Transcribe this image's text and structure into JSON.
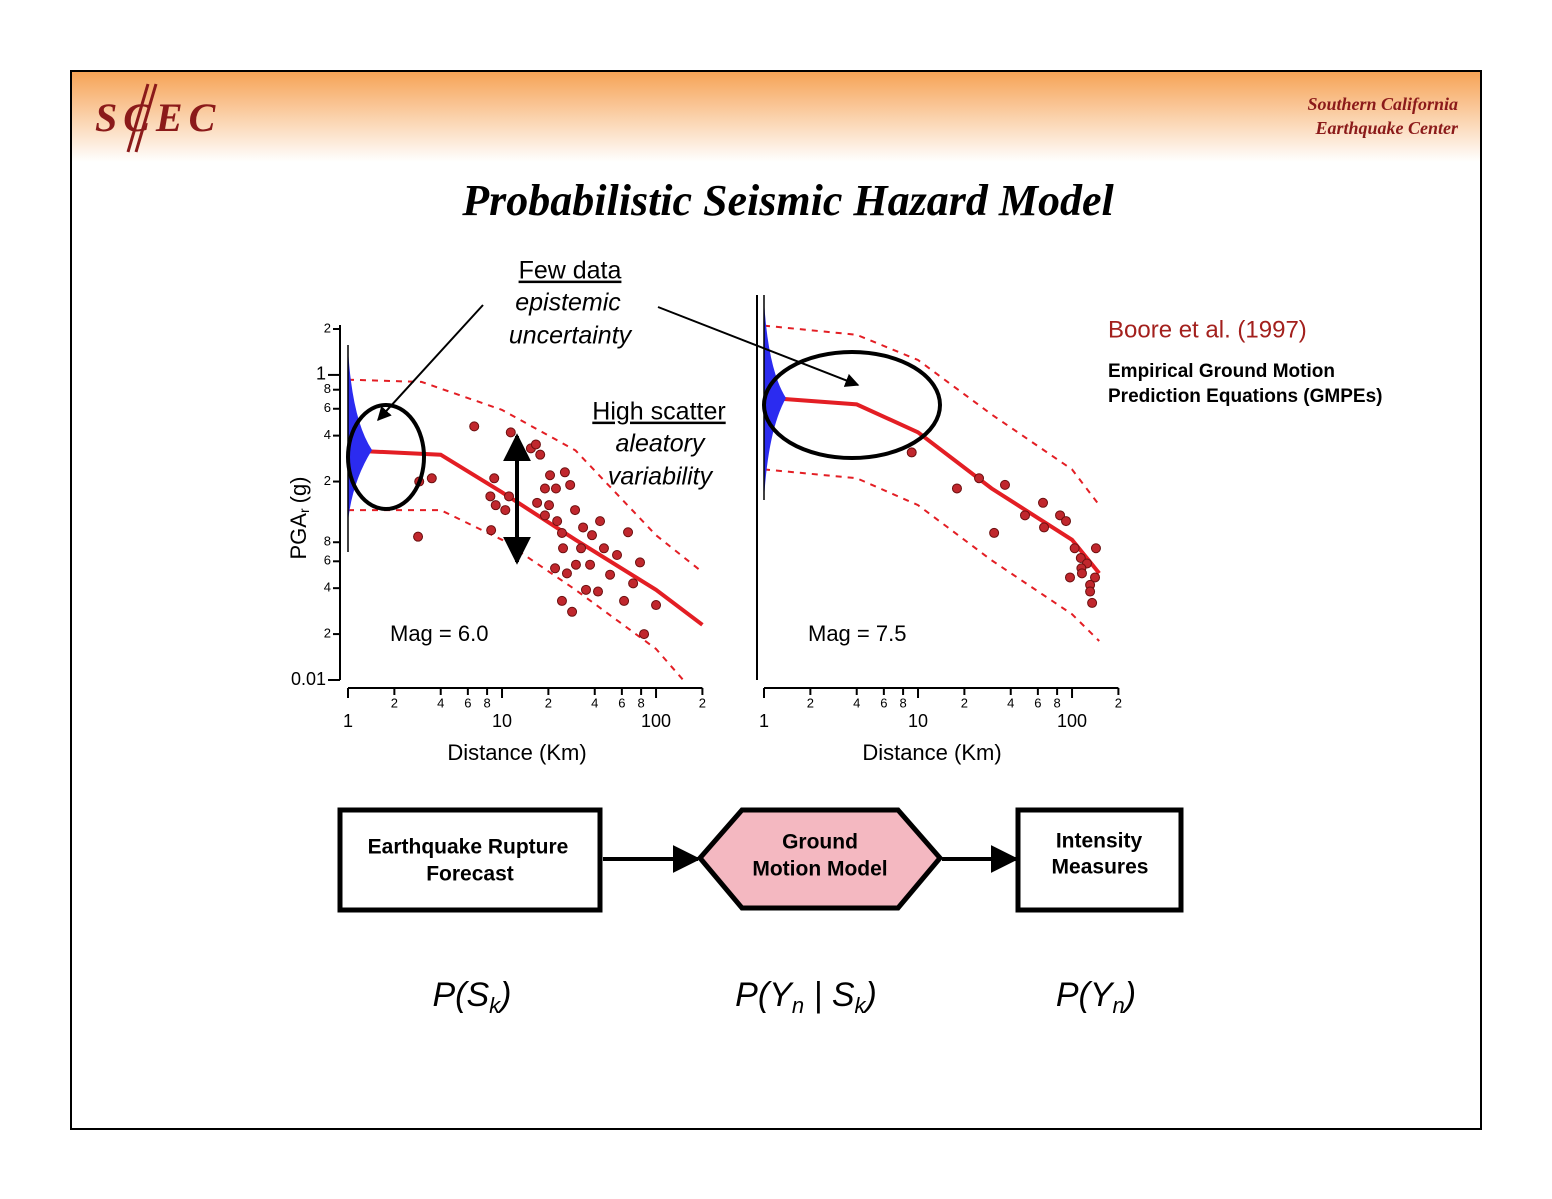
{
  "header": {
    "logo": "SCEC",
    "org_line1": "Southern California",
    "org_line2": "Earthquake Center"
  },
  "title": "Probabilistic Seismic Hazard Model",
  "annotations": {
    "epistemic_heading": "Few data",
    "epistemic_line1": "epistemic",
    "epistemic_line2": "uncertainty",
    "aleatory_heading": "High scatter",
    "aleatory_line1": "aleatory",
    "aleatory_line2": "variability"
  },
  "citation": {
    "source": "Boore et al. (1997)",
    "line1": "Empirical Ground Motion",
    "line2": "Prediction Equations (GMPEs)"
  },
  "chart_data": [
    {
      "type": "scatter",
      "annotation": "Mag = 6.0",
      "xlabel": "Distance (Km)",
      "ylabel": "PGA",
      "ylabel_sub": "r",
      "ylabel_unit": "(g)",
      "log_x": true,
      "log_y": true,
      "color": "#c0272d",
      "xlim": [
        1,
        200
      ],
      "ylim": [
        0.01,
        2
      ],
      "xticks": [
        1,
        2,
        4,
        6,
        8,
        10,
        {
          "value": 20,
          "label": "2"
        },
        {
          "value": 40,
          "label": "4"
        },
        {
          "value": 60,
          "label": "6"
        },
        {
          "value": 80,
          "label": "8"
        },
        100,
        {
          "value": 200,
          "label": "2"
        }
      ],
      "yticks": [
        0.01,
        {
          "value": 0.02,
          "label": "2"
        },
        {
          "value": 0.04,
          "label": "4"
        },
        {
          "value": 0.06,
          "label": "6"
        },
        {
          "value": 0.08,
          "label": "8"
        },
        {
          "value": 0.2,
          "label": "2"
        },
        {
          "value": 0.4,
          "label": "4"
        },
        {
          "value": 0.6,
          "label": "6"
        },
        {
          "value": 0.8,
          "label": "8"
        },
        1,
        2
      ],
      "x": [
        6.6,
        3.5,
        2.9,
        2.85,
        8.9,
        8.4,
        8.5,
        9.1,
        11.4,
        10.5,
        11.1,
        15.4,
        17.7,
        19,
        20.5,
        22.4,
        25.6,
        27.7,
        20.2,
        16.9,
        22.8,
        24.5,
        29.8,
        33.6,
        38.4,
        43.3,
        32.6,
        24.9,
        30.2,
        26.4,
        22.1,
        24.5,
        28.5,
        35.1,
        42,
        45.9,
        55.8,
        65.8,
        78.7,
        71,
        62,
        100,
        83.6,
        37.3,
        50.3,
        19,
        16.6
      ],
      "values": [
        0.46,
        0.21,
        0.2,
        0.087,
        0.21,
        0.16,
        0.096,
        0.14,
        0.42,
        0.13,
        0.16,
        0.33,
        0.3,
        0.18,
        0.22,
        0.18,
        0.23,
        0.19,
        0.14,
        0.145,
        0.11,
        0.092,
        0.13,
        0.1,
        0.089,
        0.11,
        0.073,
        0.073,
        0.057,
        0.05,
        0.054,
        0.033,
        0.028,
        0.039,
        0.038,
        0.073,
        0.066,
        0.093,
        0.059,
        0.043,
        0.033,
        0.031,
        0.02,
        0.057,
        0.049,
        0.12,
        0.35
      ],
      "curves": [
        {
          "color": "#e31e24",
          "style": "solid",
          "x": [
            1,
            4,
            10,
            30,
            100,
            200
          ],
          "values": [
            0.32,
            0.3,
            0.17,
            0.083,
            0.039,
            0.023
          ]
        },
        {
          "color": "#e31e24",
          "style": "dashed",
          "x": [
            1,
            3,
            10,
            30,
            100,
            200
          ],
          "values": [
            0.93,
            0.9,
            0.59,
            0.32,
            0.089,
            0.051
          ]
        },
        {
          "color": "#e31e24",
          "style": "dashed",
          "x": [
            1,
            4,
            10,
            30,
            100,
            150
          ],
          "values": [
            0.13,
            0.13,
            0.083,
            0.039,
            0.016,
            0.01
          ]
        }
      ]
    },
    {
      "type": "scatter",
      "annotation": "Mag = 7.5",
      "xlabel": "Distance (Km)",
      "log_x": true,
      "log_y": true,
      "color": "#c0272d",
      "xlim": [
        1,
        200
      ],
      "ylim": [
        0.01,
        3
      ],
      "xticks": [
        1,
        2,
        4,
        6,
        8,
        10,
        {
          "value": 20,
          "label": "2"
        },
        {
          "value": 40,
          "label": "4"
        },
        {
          "value": 60,
          "label": "6"
        },
        {
          "value": 80,
          "label": "8"
        },
        100,
        {
          "value": 200,
          "label": "2"
        }
      ],
      "x": [
        9.1,
        17.9,
        24.9,
        36.7,
        31.2,
        49.5,
        64.8,
        65.8,
        83.6,
        91.4,
        104,
        114,
        125,
        115,
        116,
        143,
        141,
        131,
        131,
        135,
        97
      ],
      "values": [
        0.31,
        0.18,
        0.21,
        0.19,
        0.092,
        0.12,
        0.145,
        0.1,
        0.12,
        0.11,
        0.073,
        0.063,
        0.058,
        0.054,
        0.05,
        0.073,
        0.047,
        0.042,
        0.038,
        0.032,
        0.047
      ],
      "curves": [
        {
          "color": "#e31e24",
          "style": "solid",
          "x": [
            1,
            4,
            10,
            30,
            100,
            150
          ],
          "values": [
            0.71,
            0.64,
            0.42,
            0.18,
            0.083,
            0.05
          ]
        },
        {
          "color": "#e31e24",
          "style": "dashed",
          "x": [
            1,
            4,
            10,
            30,
            100,
            150
          ],
          "values": [
            2.1,
            1.83,
            1.25,
            0.55,
            0.24,
            0.14
          ]
        },
        {
          "color": "#e31e24",
          "style": "dashed",
          "x": [
            1,
            4,
            10,
            30,
            100,
            150
          ],
          "values": [
            0.24,
            0.21,
            0.14,
            0.061,
            0.027,
            0.018
          ]
        }
      ]
    }
  ],
  "flow": {
    "forecast_line1": "Earthquake Rupture",
    "forecast_line2": "Forecast",
    "gmm_line1": "Ground",
    "gmm_line2": "Motion Model",
    "im_line1": "Intensity",
    "im_line2": "Measures"
  },
  "formulas": [
    [
      "P(S",
      "k",
      ")"
    ],
    [
      "P(Y",
      "n",
      " | S",
      "k",
      ")"
    ],
    [
      "P(Y",
      "n",
      ")"
    ]
  ]
}
